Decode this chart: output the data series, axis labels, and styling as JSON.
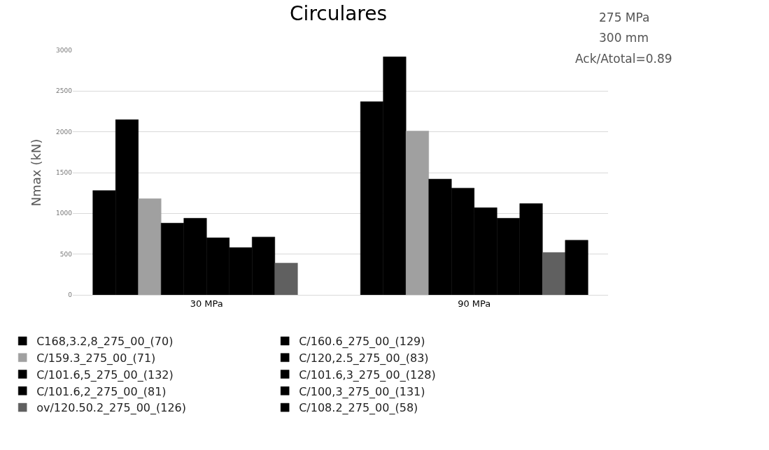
{
  "chart_data": {
    "type": "bar",
    "title": "Circulares",
    "ylabel": "Nmax (kN)",
    "categories": [
      "30 MPa",
      "90 MPa"
    ],
    "ylim": [
      0,
      3000
    ],
    "yticks": [
      0,
      500,
      1000,
      1500,
      2000,
      2500,
      3000
    ],
    "grid": "y",
    "legend": "bottom",
    "annotations": [
      "275 MPa",
      "300 mm",
      "Ack/Atotal=0.89"
    ],
    "series": [
      {
        "name": "C168,3.2,8_275_00_(70)",
        "color": "#000000",
        "values": [
          1280,
          2370
        ]
      },
      {
        "name": "C/160.6_275_00_(129)",
        "color": "#000000",
        "values": [
          2150,
          2920
        ]
      },
      {
        "name": "C/159.3_275_00_(71)",
        "color": "#a0a0a0",
        "values": [
          1180,
          2010
        ]
      },
      {
        "name": "C/120,2.5_275_00_(83)",
        "color": "#000000",
        "values": [
          880,
          1420
        ]
      },
      {
        "name": "C/101.6,5_275_00_(132)",
        "color": "#000000",
        "values": [
          940,
          1310
        ]
      },
      {
        "name": "C/101.6,3_275_00_(128)",
        "color": "#000000",
        "values": [
          700,
          1070
        ]
      },
      {
        "name": "C/101.6,2_275_00_(81)",
        "color": "#000000",
        "values": [
          580,
          940
        ]
      },
      {
        "name": "C/100,3_275_00_(131)",
        "color": "#000000",
        "values": [
          710,
          1120
        ]
      },
      {
        "name": "ov/120.50.2_275_00_(126)",
        "color": "#606060",
        "values": [
          390,
          520
        ]
      },
      {
        "name": "C/108.2_275_00_(58)",
        "color": "#000000",
        "values": [
          null,
          670
        ]
      }
    ]
  }
}
